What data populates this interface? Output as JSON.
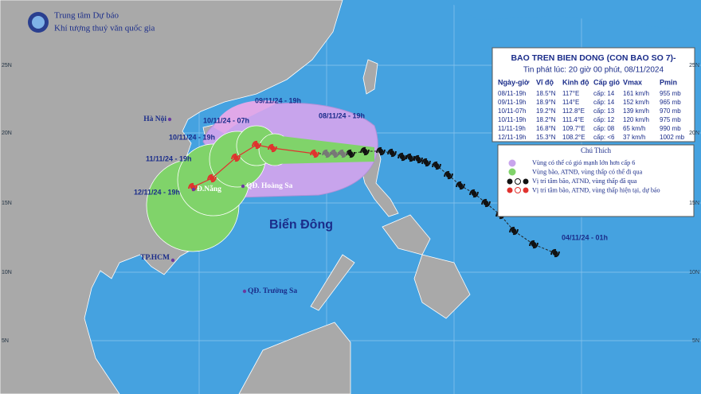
{
  "header": {
    "org": "Trung tâm Dự báo",
    "org_sub": "Khí tượng thuỷ văn quốc gia"
  },
  "map": {
    "latitude_labels": [
      "25N",
      "20N",
      "15N",
      "10N",
      "5N"
    ],
    "places": [
      "Hà Nội",
      "Đ.Nẵng",
      "QĐ. Hoàng Sa",
      "TP.HCM",
      "QĐ. Trường Sa"
    ],
    "sea_label": "Biển Đông",
    "track_labels": [
      "09/11/24 - 19h",
      "08/11/24 - 19h",
      "10/11/24 - 07h",
      "10/11/24 - 19h",
      "11/11/24 - 19h",
      "12/11/24 - 19h",
      "04/11/24 - 01h"
    ]
  },
  "info_box": {
    "title": "BAO TREN BIEN DONG (CON BAO SO 7)-",
    "issued": "Tin phát lúc: 20 giờ 00 phút, 08/11/2024",
    "columns": [
      "Ngày-giờ",
      "Vĩ độ",
      "Kinh độ",
      "Cấp gió",
      "Vmax",
      "Pmin"
    ],
    "rows": [
      [
        "08/11-19h",
        "18.5°N",
        "117°E",
        "cấp: 14",
        "161 km/h",
        "955 mb"
      ],
      [
        "09/11-19h",
        "18.9°N",
        "114°E",
        "cấp: 14",
        "152 km/h",
        "965 mb"
      ],
      [
        "10/11-07h",
        "19.2°N",
        "112.8°E",
        "cấp: 13",
        "139 km/h",
        "970 mb"
      ],
      [
        "10/11-19h",
        "18.2°N",
        "111.4°E",
        "cấp: 12",
        "120 km/h",
        "975 mb"
      ],
      [
        "11/11-19h",
        "16.8°N",
        "109.7°E",
        "cấp: 08",
        "65 km/h",
        "990 mb"
      ],
      [
        "12/11-19h",
        "15.3°N",
        "108.2°E",
        "cấp: <6",
        "37 km/h",
        "1002 mb"
      ]
    ]
  },
  "legend": {
    "title": "Chú Thích",
    "items": [
      "Vùng có thể có gió mạnh lớn hơn cấp 6",
      "Vùng bão, ATNĐ, vùng thấp có thể đi qua",
      "Vị trí tâm bão, ATNĐ, vùng thấp đã qua",
      "Vị trí tâm bão, ATNĐ, vùng thấp hiện tại, dự báo"
    ]
  }
}
